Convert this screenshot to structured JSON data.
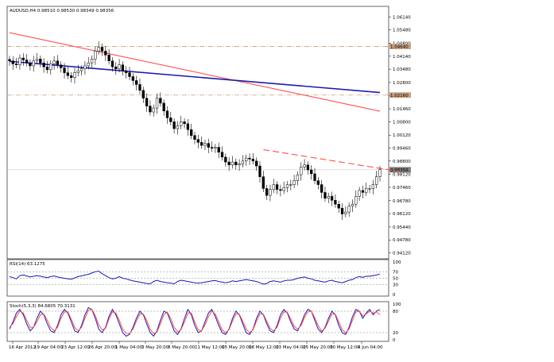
{
  "chart_data": [
    {
      "type": "candlestick",
      "title": "AUDUSD,H4  0.98510 0.98530 0.98349 0.98356",
      "ylim": [
        0.939,
        1.066
      ],
      "ytick_labels": [
        "1.06140",
        "1.05480",
        "1.04800",
        "1.04140",
        "1.03480",
        "1.02800",
        "1.02140",
        "1.01460",
        "1.00800",
        "1.00120",
        "0.99460",
        "0.98800",
        "0.98120",
        "0.97460",
        "0.96780",
        "0.96120",
        "0.95440",
        "0.94780",
        "0.94120"
      ],
      "highlighted_labels": [
        {
          "text": "1.04640",
          "value": 1.0464,
          "color": "#c8a082"
        },
        {
          "text": "1.02160",
          "value": 1.0216,
          "color": "#c8a082"
        },
        {
          "text": "0.98356",
          "value": 0.98356,
          "color": "#7f7f7f"
        }
      ],
      "x_labels": [
        "16 Apr 2012",
        "19 Apr 04:00",
        "23 Apr 12:00",
        "26 Apr 20:00",
        "1 May 04:00",
        "3 May 20:00",
        "8 May 20:00",
        "11 May 12:00",
        "15 May 20:00",
        "18 May 12:00",
        "23 May 04:00",
        "25 May 20:00",
        "30 May 12:00",
        "4 Jun 04:00"
      ],
      "close": [
        1.039,
        1.0375,
        1.037,
        1.0405,
        1.0395,
        1.038,
        1.0365,
        1.0392,
        1.04,
        1.038,
        1.036,
        1.0345,
        1.0375,
        1.039,
        1.037,
        1.0355,
        1.033,
        1.0315,
        1.0305,
        1.033,
        1.034,
        1.035,
        1.0365,
        1.038,
        1.04,
        1.044,
        1.046,
        1.044,
        1.042,
        1.039,
        1.036,
        1.035,
        1.037,
        1.034,
        1.033,
        1.031,
        1.029,
        1.027,
        1.024,
        1.02,
        1.016,
        1.013,
        1.015,
        1.02,
        1.0175,
        1.0135,
        1.01,
        1.008,
        1.0045,
        1.006,
        1.008,
        1.007,
        1.004,
        1.001,
        0.999,
        0.9975,
        0.996,
        0.997,
        0.995,
        0.9945,
        0.995,
        0.9925,
        0.99,
        0.9875,
        0.986,
        0.9875,
        0.986,
        0.9865,
        0.988,
        0.9895,
        0.989,
        0.988,
        0.9855,
        0.98,
        0.974,
        0.9705,
        0.9735,
        0.976,
        0.9735,
        0.973,
        0.9745,
        0.976,
        0.976,
        0.978,
        0.981,
        0.985,
        0.986,
        0.9835,
        0.9815,
        0.978,
        0.976,
        0.972,
        0.969,
        0.97,
        0.968,
        0.966,
        0.964,
        0.961,
        0.962,
        0.965,
        0.966,
        0.97,
        0.973,
        0.972,
        0.974,
        0.974,
        0.976,
        0.98,
        0.9836
      ],
      "lines": {
        "ma_red": {
          "color": "#ff5050",
          "from": [
            0,
            1.0534
          ],
          "to": [
            108,
            1.0134
          ]
        },
        "ma_blue": {
          "color": "#1a1ab0",
          "from": [
            0,
            1.0388
          ],
          "to": [
            108,
            1.0229
          ]
        },
        "trend_dashed": {
          "color": "#ff5050",
          "from": [
            74,
            0.9938
          ],
          "to": [
            114,
            0.9826
          ]
        },
        "resistance_1": {
          "value": 1.0464,
          "color": "#c8a082"
        },
        "resistance_2": {
          "value": 1.0216,
          "color": "#c8a082"
        },
        "current": {
          "value": 0.98356,
          "color": "#c0c0c0"
        }
      }
    },
    {
      "type": "line",
      "title": "RSI(14) 63.1275",
      "ylim": [
        0,
        100
      ],
      "ytick_labels": [
        "100",
        "70",
        "50",
        "30",
        "0"
      ],
      "levels": [
        70,
        50,
        30
      ],
      "series": [
        {
          "color": "#1a1ab0",
          "values": [
            55,
            52,
            48,
            58,
            60,
            57,
            54,
            56,
            58,
            56,
            54,
            52,
            55,
            57,
            54,
            52,
            50,
            48,
            47,
            51,
            55,
            57,
            60,
            62,
            66,
            70,
            72,
            64,
            58,
            52,
            48,
            50,
            55,
            50,
            48,
            45,
            42,
            40,
            38,
            36,
            34,
            33,
            40,
            44,
            40,
            38,
            36,
            35,
            33,
            40,
            44,
            42,
            40,
            38,
            36,
            35,
            36,
            38,
            40,
            42,
            43,
            40,
            38,
            36,
            38,
            42,
            40,
            42,
            44,
            46,
            44,
            42,
            40,
            36,
            32,
            34,
            40,
            42,
            40,
            38,
            42,
            44,
            44,
            46,
            50,
            52,
            54,
            50,
            48,
            44,
            42,
            40,
            38,
            42,
            44,
            40,
            38,
            36,
            40,
            44,
            46,
            52,
            55,
            53,
            56,
            56,
            58,
            60,
            63
          ]
        }
      ]
    },
    {
      "type": "line",
      "title": "Stoch(5,3,3) 84.6805 70.3131",
      "ylim": [
        0,
        100
      ],
      "ytick_labels": [
        "100",
        "80",
        "20",
        "0"
      ],
      "levels": [
        80,
        20
      ],
      "series": [
        {
          "color": "#1a1ab0",
          "values": [
            30,
            50,
            75,
            85,
            70,
            45,
            25,
            35,
            60,
            80,
            70,
            45,
            25,
            20,
            40,
            70,
            85,
            75,
            50,
            25,
            20,
            40,
            70,
            90,
            85,
            60,
            30,
            20,
            35,
            65,
            85,
            70,
            45,
            20,
            10,
            15,
            35,
            60,
            80,
            70,
            45,
            20,
            10,
            25,
            55,
            80,
            75,
            50,
            25,
            15,
            30,
            60,
            85,
            70,
            40,
            20,
            25,
            50,
            75,
            85,
            65,
            40,
            20,
            15,
            30,
            60,
            80,
            70,
            45,
            20,
            15,
            30,
            60,
            80,
            70,
            45,
            25,
            20,
            40,
            70,
            85,
            75,
            50,
            30,
            25,
            45,
            70,
            85,
            80,
            55,
            30,
            20,
            35,
            60,
            80,
            70,
            40,
            20,
            15,
            35,
            65,
            85,
            80,
            60,
            75,
            85,
            70,
            80,
            85
          ]
        },
        {
          "color": "#ff5050",
          "values": [
            35,
            45,
            65,
            80,
            75,
            55,
            35,
            35,
            50,
            70,
            72,
            55,
            35,
            25,
            35,
            60,
            78,
            78,
            58,
            35,
            25,
            35,
            60,
            82,
            85,
            68,
            42,
            28,
            32,
            58,
            78,
            75,
            55,
            30,
            18,
            17,
            30,
            52,
            72,
            72,
            55,
            30,
            17,
            22,
            45,
            70,
            77,
            60,
            35,
            22,
            28,
            50,
            75,
            75,
            50,
            28,
            25,
            42,
            65,
            80,
            72,
            50,
            28,
            20,
            28,
            52,
            72,
            72,
            52,
            30,
            20,
            28,
            52,
            72,
            72,
            52,
            32,
            25,
            35,
            60,
            78,
            77,
            58,
            38,
            30,
            40,
            62,
            78,
            80,
            62,
            40,
            25,
            32,
            52,
            72,
            72,
            50,
            28,
            20,
            30,
            55,
            78,
            80,
            67,
            72,
            80,
            75,
            78,
            70
          ]
        }
      ]
    }
  ]
}
